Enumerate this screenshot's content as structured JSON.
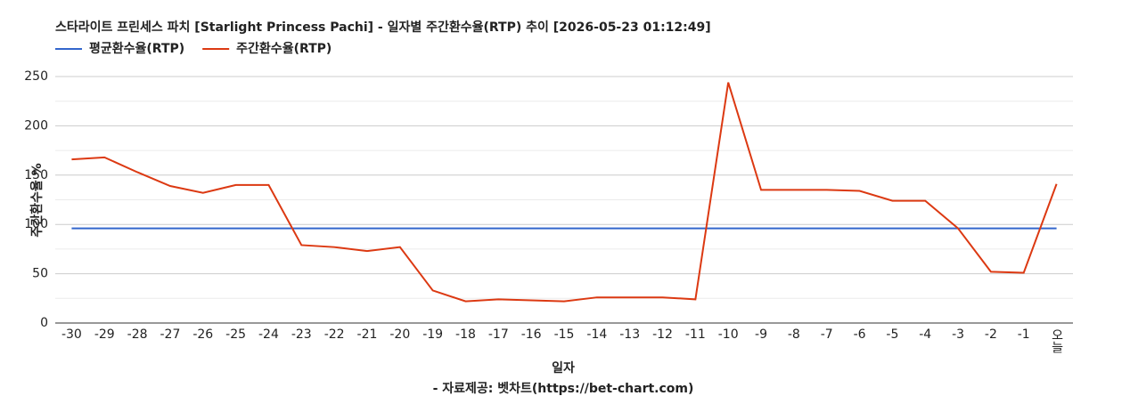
{
  "chart_data": {
    "type": "line",
    "title": "스타라이트 프린세스 파치 [Starlight Princess Pachi] - 일자별 주간환수율(RTP) 추이 [2026-05-23 01:12:49]",
    "x_label": "일자",
    "y_label": "주간환수율 %",
    "source": "- 자료제공: 벳차트(https://bet-chart.com)",
    "categories": [
      "-30",
      "-29",
      "-28",
      "-27",
      "-26",
      "-25",
      "-24",
      "-23",
      "-22",
      "-21",
      "-20",
      "-19",
      "-18",
      "-17",
      "-16",
      "-15",
      "-14",
      "-13",
      "-12",
      "-11",
      "-10",
      "-9",
      "-8",
      "-7",
      "-6",
      "-5",
      "-4",
      "-3",
      "-2",
      "-1",
      "오늘"
    ],
    "series": [
      {
        "name": "평균환수율(RTP)",
        "color": "#3366cc",
        "values": [
          96,
          96,
          96,
          96,
          96,
          96,
          96,
          96,
          96,
          96,
          96,
          96,
          96,
          96,
          96,
          96,
          96,
          96,
          96,
          96,
          96,
          96,
          96,
          96,
          96,
          96,
          96,
          96,
          96,
          96,
          96
        ]
      },
      {
        "name": "주간환수율(RTP)",
        "color": "#dc3912",
        "values": [
          166,
          168,
          153,
          139,
          132,
          140,
          140,
          79,
          77,
          73,
          77,
          33,
          22,
          24,
          23,
          22,
          26,
          26,
          26,
          24,
          244,
          135,
          135,
          135,
          134,
          124,
          124,
          96,
          52,
          51,
          141
        ]
      }
    ],
    "ylim": [
      0,
      250
    ],
    "yticks": [
      0,
      50,
      100,
      150,
      200,
      250
    ],
    "grid": true
  }
}
